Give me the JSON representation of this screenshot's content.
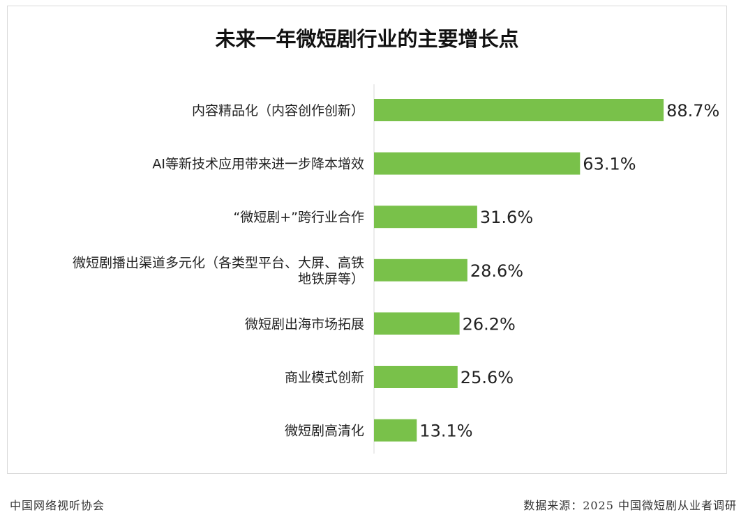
{
  "chart_data": {
    "type": "bar",
    "orientation": "horizontal",
    "title": "未来一年微短剧行业的主要增长点",
    "xlabel": "",
    "ylabel": "",
    "xlim": [
      0,
      100
    ],
    "grid": false,
    "legend": "none",
    "unit": "%",
    "categories": [
      [
        "内容精品化（内容创作创新）"
      ],
      [
        "AI等新技术应用带来进一步降本增效"
      ],
      [
        "“微短剧+”跨行业合作"
      ],
      [
        "微短剧播出渠道多元化（各类型平台、大屏、高铁",
        "地铁屏等）"
      ],
      [
        "微短剧出海市场拓展"
      ],
      [
        "商业模式创新"
      ],
      [
        "微短剧高清化"
      ]
    ],
    "values": [
      88.7,
      63.1,
      31.6,
      28.6,
      26.2,
      25.6,
      13.1
    ],
    "value_labels": [
      "88.7%",
      "63.1%",
      "31.6%",
      "28.6%",
      "26.2%",
      "25.6%",
      "13.1%"
    ],
    "bar_color": "#79c14a"
  },
  "footer": {
    "left": "中国网络视听协会",
    "right": "数据来源：2025 中国微短剧从业者调研"
  }
}
